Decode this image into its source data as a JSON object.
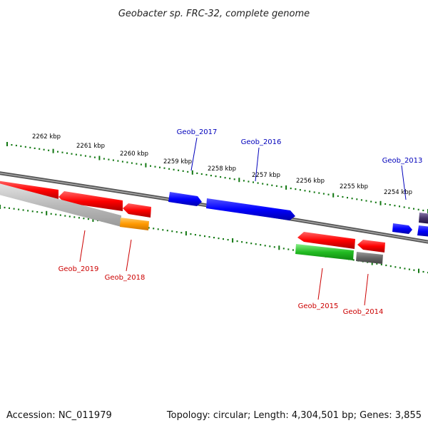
{
  "title": "Geobacter sp. FRC-32, complete genome",
  "footer": {
    "accession": "Accession: NC_011979",
    "summary": "Topology: circular; Length: 4,304,501 bp; Genes: 3,855"
  },
  "ticks": [
    "2262 kbp",
    "2261 kbp",
    "2260 kbp",
    "2259 kbp",
    "2258 kbp",
    "2257 kbp",
    "2256 kbp",
    "2255 kbp",
    "2254 kbp"
  ],
  "genes": [
    {
      "name": "Geob_2019",
      "color": "#cc0000",
      "strand": "reverse"
    },
    {
      "name": "Geob_2018",
      "color": "#cc0000",
      "strand": "reverse"
    },
    {
      "name": "Geob_2017",
      "color": "#0000bb",
      "strand": "forward"
    },
    {
      "name": "Geob_2016",
      "color": "#0000bb",
      "strand": "forward"
    },
    {
      "name": "Geob_2015",
      "color": "#cc0000",
      "strand": "reverse"
    },
    {
      "name": "Geob_2014",
      "color": "#cc0000",
      "strand": "reverse"
    },
    {
      "name": "Geob_2013",
      "color": "#0000bb",
      "strand": "forward"
    }
  ],
  "colors": {
    "forward_cds": "#0000ff",
    "reverse_cds": "#ff0000",
    "rrna_like": "#22bb22",
    "trna_like": "#ff9900",
    "pseudo": "#666666",
    "tick_green": "#117711",
    "backbone": "#777777"
  }
}
